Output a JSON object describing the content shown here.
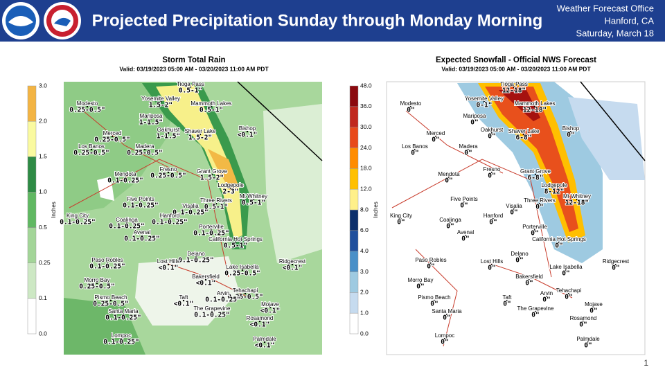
{
  "header": {
    "title": "Projected Precipitation Sunday through Monday Morning",
    "office": [
      "Weather Forecast Office",
      "Hanford, CA",
      "Saturday, March 18"
    ]
  },
  "maps": [
    {
      "title": "Storm Total Rain",
      "valid": "Valid: 03/19/2023 05:00 AM - 03/20/2023 11:00 AM PDT",
      "unit": "Inches",
      "scale": [
        "0.0",
        "0.1",
        "0.25",
        "0.5",
        "1.0",
        "1.5",
        "2.0",
        "3.0"
      ],
      "places": [
        {
          "name": "Tioga Pass",
          "value": "0.5-1\""
        },
        {
          "name": "Yosemite Valley",
          "value": "1.5-2\""
        },
        {
          "name": "Mammoth Lakes",
          "value": "0.5-1\""
        },
        {
          "name": "Modesto",
          "value": "0.25-0.5\""
        },
        {
          "name": "Mariposa",
          "value": "1-1.5\""
        },
        {
          "name": "Bishop",
          "value": "<0.1\""
        },
        {
          "name": "Merced",
          "value": "0.25-0.5\""
        },
        {
          "name": "Oakhurst",
          "value": "1-1.5\""
        },
        {
          "name": "Shaver Lake",
          "value": "1.5-2\""
        },
        {
          "name": "Los Banos",
          "value": "0.25-0.5\""
        },
        {
          "name": "Madera",
          "value": "0.25-0.5\""
        },
        {
          "name": "Fresno",
          "value": "0.25-0.5\""
        },
        {
          "name": "Grant Grove",
          "value": "1.5-2\""
        },
        {
          "name": "Mendota",
          "value": "0.1-0.25\""
        },
        {
          "name": "Lodgepole",
          "value": "2-3\""
        },
        {
          "name": "Three Rivers",
          "value": "0.5-1\""
        },
        {
          "name": "Mt Whitney",
          "value": "0.5-1\""
        },
        {
          "name": "Five Points",
          "value": "0.1-0.25\""
        },
        {
          "name": "Visalia",
          "value": "0.1-0.25\""
        },
        {
          "name": "King City",
          "value": "0.1-0.25\""
        },
        {
          "name": "Coalinga",
          "value": "0.1-0.25\""
        },
        {
          "name": "Hanford",
          "value": "0.1-0.25\""
        },
        {
          "name": "Porterville",
          "value": "0.1-0.25\""
        },
        {
          "name": "Avenal",
          "value": "0.1-0.25\""
        },
        {
          "name": "California Hot Springs",
          "value": "0.5-1\""
        },
        {
          "name": "Delano",
          "value": "0.1-0.25\""
        },
        {
          "name": "Paso Robles",
          "value": "0.1-0.25\""
        },
        {
          "name": "Lost Hills",
          "value": "<0.1\""
        },
        {
          "name": "Ridgecrest",
          "value": "<0.1\""
        },
        {
          "name": "Lake Isabella",
          "value": "0.25-0.5\""
        },
        {
          "name": "Morro Bay",
          "value": "0.25-0.5\""
        },
        {
          "name": "Bakersfield",
          "value": "<0.1\""
        },
        {
          "name": "Tehachapi",
          "value": "0.25-0.5\""
        },
        {
          "name": "Arvin",
          "value": "0.1-0.25\""
        },
        {
          "name": "Pismo Beach",
          "value": "0.25-0.5\""
        },
        {
          "name": "Taft",
          "value": "<0.1\""
        },
        {
          "name": "Mojave",
          "value": "<0.1\""
        },
        {
          "name": "The Grapevine",
          "value": "0.1-0.25\""
        },
        {
          "name": "Santa Maria",
          "value": "0.1-0.25\""
        },
        {
          "name": "Rosamond",
          "value": "<0.1\""
        },
        {
          "name": "Lompoc",
          "value": "0.1-0.25\""
        },
        {
          "name": "Palmdale",
          "value": "<0.1\""
        }
      ]
    },
    {
      "title": "Expected Snowfall - Official NWS Forecast",
      "valid": "Valid: 03/19/2023 05:00 AM - 03/20/2023 11:00 AM PDT",
      "unit": "Inches",
      "scale": [
        "0.0",
        "1.0",
        "2.0",
        "3.0",
        "4.0",
        "6.0",
        "8.0",
        "12.0",
        "18.0",
        "24.0",
        "30.0",
        "36.0",
        "48.0"
      ],
      "places": [
        {
          "name": "Tioga Pass",
          "value": "12-18\""
        },
        {
          "name": "Yosemite Valley",
          "value": "0-1\""
        },
        {
          "name": "Mammoth Lakes",
          "value": "12-18\""
        },
        {
          "name": "Modesto",
          "value": "0\""
        },
        {
          "name": "Mariposa",
          "value": "0\""
        },
        {
          "name": "Bishop",
          "value": "0\""
        },
        {
          "name": "Merced",
          "value": "0\""
        },
        {
          "name": "Oakhurst",
          "value": "0\""
        },
        {
          "name": "Shaver Lake",
          "value": "6-8\""
        },
        {
          "name": "Los Banos",
          "value": "0\""
        },
        {
          "name": "Madera",
          "value": "0\""
        },
        {
          "name": "Fresno",
          "value": "0\""
        },
        {
          "name": "Grant Grove",
          "value": "6-8\""
        },
        {
          "name": "Mendota",
          "value": "0\""
        },
        {
          "name": "Lodgepole",
          "value": "8-12\""
        },
        {
          "name": "Three Rivers",
          "value": "0\""
        },
        {
          "name": "Mt Whitney",
          "value": "12-18\""
        },
        {
          "name": "Five Points",
          "value": "0\""
        },
        {
          "name": "Visalia",
          "value": "0\""
        },
        {
          "name": "King City",
          "value": "0\""
        },
        {
          "name": "Coalinga",
          "value": "0\""
        },
        {
          "name": "Hanford",
          "value": "0\""
        },
        {
          "name": "Porterville",
          "value": "0\""
        },
        {
          "name": "Avenal",
          "value": "0\""
        },
        {
          "name": "California Hot Springs",
          "value": "0\""
        },
        {
          "name": "Delano",
          "value": "0\""
        },
        {
          "name": "Paso Robles",
          "value": "0\""
        },
        {
          "name": "Lost Hills",
          "value": "0\""
        },
        {
          "name": "Ridgecrest",
          "value": "0\""
        },
        {
          "name": "Lake Isabella",
          "value": "0\""
        },
        {
          "name": "Morro Bay",
          "value": "0\""
        },
        {
          "name": "Bakersfield",
          "value": "0\""
        },
        {
          "name": "Tehachapi",
          "value": "0\""
        },
        {
          "name": "Arvin",
          "value": "0\""
        },
        {
          "name": "Pismo Beach",
          "value": "0\""
        },
        {
          "name": "Taft",
          "value": "0\""
        },
        {
          "name": "Mojave",
          "value": "0\""
        },
        {
          "name": "The Grapevine",
          "value": "0\""
        },
        {
          "name": "Santa Maria",
          "value": "0\""
        },
        {
          "name": "Rosamond",
          "value": "0\""
        },
        {
          "name": "Lompoc",
          "value": "0\""
        },
        {
          "name": "Palmdale",
          "value": "0\""
        }
      ]
    }
  ],
  "page_number": "1"
}
